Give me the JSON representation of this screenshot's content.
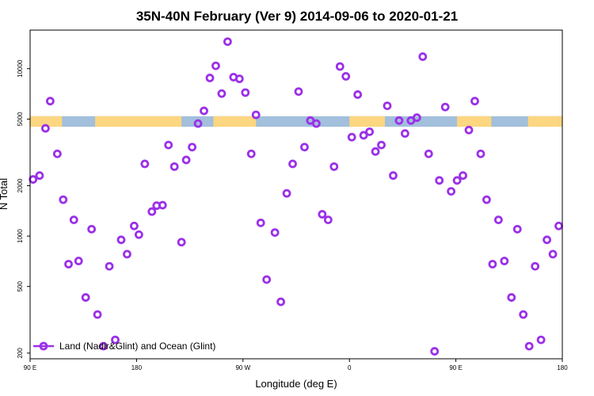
{
  "chart_data": {
    "type": "scatter",
    "title": "35N-40N February (Ver 9)   2014-09-06 to 2020-01-21",
    "xlabel": "Longitude (deg E)",
    "ylabel": "N Total",
    "x_ticks": [
      {
        "value": 90,
        "label": "90 E"
      },
      {
        "value": 180,
        "label": "180"
      },
      {
        "value": 270,
        "label": "90 W"
      },
      {
        "value": 360,
        "label": "0"
      },
      {
        "value": 450,
        "label": "90 E"
      },
      {
        "value": 540,
        "label": "180"
      }
    ],
    "y_ticks": [
      200,
      500,
      1000,
      2000,
      5000,
      10000
    ],
    "xlim": [
      90,
      540
    ],
    "ylim": [
      185,
      17000
    ],
    "y_scale": "log",
    "grid": false,
    "legend_position": "bottom-left",
    "series": [
      {
        "name": "Land (Nadir&Glint) and Ocean (Glint)",
        "color": "#9b30e8",
        "marker": "open-circle",
        "points": [
          [
            92.5,
            2180
          ],
          [
            98,
            2300
          ],
          [
            103,
            4400
          ],
          [
            107,
            6400
          ],
          [
            113,
            3100
          ],
          [
            118,
            1650
          ],
          [
            122.5,
            680
          ],
          [
            127,
            1250
          ],
          [
            131,
            710
          ],
          [
            137,
            430
          ],
          [
            142,
            1100
          ],
          [
            147,
            340
          ],
          [
            152,
            220
          ],
          [
            157,
            660
          ],
          [
            162,
            240
          ],
          [
            167,
            950
          ],
          [
            172,
            780
          ],
          [
            178,
            1150
          ],
          [
            182,
            1020
          ],
          [
            187,
            2700
          ],
          [
            193,
            1400
          ],
          [
            197,
            1520
          ],
          [
            202,
            1530
          ],
          [
            207,
            3500
          ],
          [
            212,
            2600
          ],
          [
            218,
            920
          ],
          [
            222,
            2850
          ],
          [
            227,
            3400
          ],
          [
            232,
            4700
          ],
          [
            237,
            5600
          ],
          [
            242,
            8800
          ],
          [
            247,
            10400
          ],
          [
            252,
            7100
          ],
          [
            257,
            14500
          ],
          [
            262,
            8900
          ],
          [
            267,
            8700
          ],
          [
            272,
            7200
          ],
          [
            277,
            3100
          ],
          [
            281,
            5300
          ],
          [
            285,
            1200
          ],
          [
            290,
            550
          ],
          [
            297,
            1050
          ],
          [
            302,
            405
          ],
          [
            307,
            1800
          ],
          [
            312,
            2700
          ],
          [
            317,
            7300
          ],
          [
            322,
            3400
          ],
          [
            327,
            4900
          ],
          [
            332,
            4700
          ],
          [
            337,
            1350
          ],
          [
            342,
            1250
          ],
          [
            347,
            2600
          ],
          [
            352,
            10300
          ],
          [
            357,
            9000
          ],
          [
            362,
            3900
          ],
          [
            367,
            7000
          ],
          [
            372,
            4000
          ],
          [
            377,
            4200
          ],
          [
            382,
            3200
          ],
          [
            387,
            3500
          ],
          [
            392,
            6000
          ],
          [
            397,
            2300
          ],
          [
            402,
            4900
          ],
          [
            407,
            4100
          ],
          [
            412,
            4900
          ],
          [
            417,
            5100
          ],
          [
            422,
            11800
          ],
          [
            427,
            3100
          ],
          [
            432,
            205
          ],
          [
            436,
            2150
          ],
          [
            441,
            5900
          ],
          [
            446,
            1850
          ],
          [
            451,
            2150
          ],
          [
            456,
            2300
          ],
          [
            461,
            4300
          ],
          [
            466,
            6400
          ],
          [
            471,
            3100
          ],
          [
            476,
            1650
          ],
          [
            481,
            680
          ],
          [
            486,
            1250
          ],
          [
            491,
            710
          ],
          [
            497,
            430
          ],
          [
            502,
            1100
          ],
          [
            507,
            340
          ],
          [
            512,
            220
          ],
          [
            517,
            660
          ],
          [
            522,
            240
          ],
          [
            527,
            950
          ],
          [
            532,
            780
          ],
          [
            537,
            1150
          ]
        ]
      }
    ],
    "background_band": {
      "y_range": [
        4500,
        5200
      ],
      "ocean_color": "#a2bfdc",
      "land_color": "#fcd680",
      "land_segments": [
        [
          90,
          117
        ],
        [
          145,
          218
        ],
        [
          245,
          281
        ],
        [
          360,
          390
        ],
        [
          451,
          480
        ],
        [
          511,
          540
        ]
      ]
    }
  }
}
